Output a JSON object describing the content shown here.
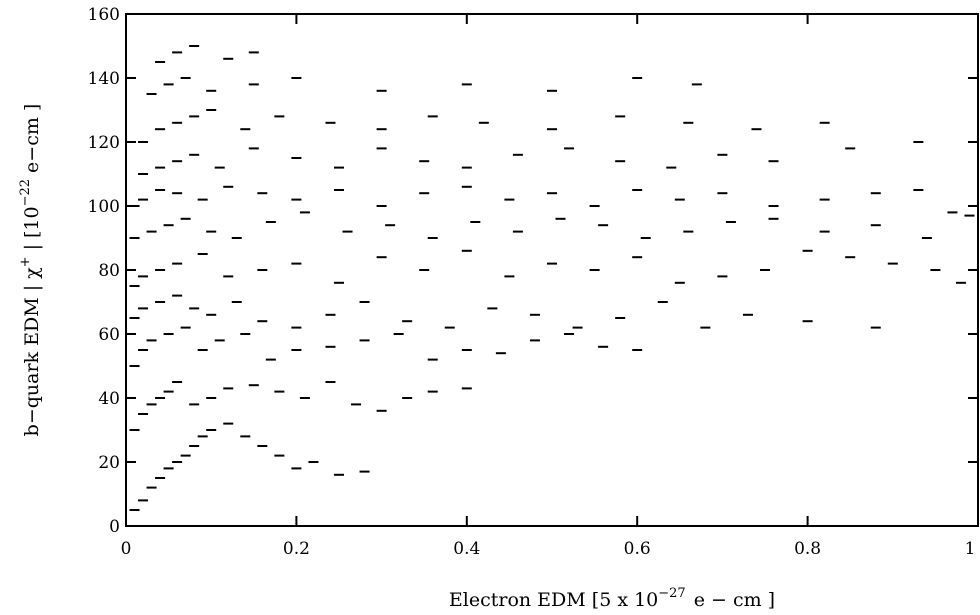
{
  "chart_data": {
    "type": "scatter",
    "title": "",
    "xlabel": "Electron EDM [5 x 10",
    "xlabel_exponent": "−27",
    "xlabel_unit": "e − cm ]",
    "ylabel": "b−quark EDM  |  χ",
    "ylabel_superscript": "+",
    "ylabel_unit": "|  [10",
    "ylabel_exponent": "−22",
    "ylabel_unit2": "e−cm ]",
    "xlim": [
      0,
      1
    ],
    "ylim": [
      0,
      160
    ],
    "grid": false,
    "legend": "none",
    "x_ticks": [
      0,
      0.2,
      0.4,
      0.6,
      0.8,
      1
    ],
    "x_tick_labels": [
      "0",
      "0.2",
      "0.4",
      "0.6",
      "0.8",
      "1"
    ],
    "y_ticks": [
      0,
      20,
      40,
      60,
      80,
      100,
      120,
      140,
      160
    ],
    "y_tick_labels": [
      "0",
      "20",
      "40",
      "60",
      "80",
      "100",
      "120",
      "140",
      "160"
    ],
    "marker_color": "#000000",
    "series": [
      {
        "x": [
          0.01,
          0.02,
          0.03,
          0.04,
          0.05,
          0.06,
          0.07,
          0.08,
          0.09,
          0.1,
          0.12,
          0.14,
          0.16,
          0.18,
          0.2,
          0.22,
          0.25,
          0.28,
          0.01,
          0.02,
          0.03,
          0.04,
          0.05,
          0.06,
          0.08,
          0.1,
          0.12,
          0.15,
          0.18,
          0.21,
          0.24,
          0.27,
          0.3,
          0.33,
          0.36,
          0.4,
          0.01,
          0.02,
          0.03,
          0.05,
          0.07,
          0.09,
          0.11,
          0.14,
          0.17,
          0.2,
          0.24,
          0.28,
          0.32,
          0.36,
          0.4,
          0.44,
          0.48,
          0.52,
          0.56,
          0.6,
          0.01,
          0.02,
          0.04,
          0.06,
          0.08,
          0.1,
          0.13,
          0.16,
          0.2,
          0.24,
          0.28,
          0.33,
          0.38,
          0.43,
          0.48,
          0.53,
          0.58,
          0.63,
          0.68,
          0.73,
          0.8,
          0.88,
          0.01,
          0.02,
          0.04,
          0.06,
          0.09,
          0.12,
          0.16,
          0.2,
          0.25,
          0.3,
          0.35,
          0.4,
          0.45,
          0.5,
          0.55,
          0.6,
          0.65,
          0.7,
          0.75,
          0.8,
          0.85,
          0.9,
          0.95,
          0.98,
          0.01,
          0.03,
          0.05,
          0.07,
          0.1,
          0.13,
          0.17,
          0.21,
          0.26,
          0.31,
          0.36,
          0.41,
          0.46,
          0.51,
          0.56,
          0.61,
          0.66,
          0.71,
          0.76,
          0.82,
          0.88,
          0.94,
          0.99,
          0.01,
          0.02,
          0.04,
          0.06,
          0.09,
          0.12,
          0.16,
          0.2,
          0.25,
          0.3,
          0.35,
          0.4,
          0.45,
          0.5,
          0.55,
          0.6,
          0.65,
          0.7,
          0.76,
          0.82,
          0.88,
          0.93,
          0.97,
          0.02,
          0.04,
          0.06,
          0.08,
          0.11,
          0.15,
          0.2,
          0.25,
          0.3,
          0.35,
          0.4,
          0.46,
          0.52,
          0.58,
          0.64,
          0.7,
          0.76,
          0.85,
          0.93,
          0.02,
          0.04,
          0.06,
          0.08,
          0.1,
          0.14,
          0.18,
          0.24,
          0.3,
          0.36,
          0.42,
          0.5,
          0.58,
          0.66,
          0.74,
          0.82,
          0.03,
          0.05,
          0.07,
          0.1,
          0.15,
          0.2,
          0.3,
          0.4,
          0.5,
          0.6,
          0.67,
          0.04,
          0.06,
          0.08,
          0.12,
          0.15
        ],
        "y": [
          5,
          8,
          12,
          15,
          18,
          20,
          22,
          25,
          28,
          30,
          32,
          28,
          25,
          22,
          18,
          20,
          16,
          17,
          30,
          35,
          38,
          40,
          42,
          45,
          38,
          40,
          43,
          44,
          42,
          40,
          45,
          38,
          36,
          40,
          42,
          43,
          50,
          55,
          58,
          60,
          62,
          55,
          58,
          60,
          52,
          55,
          56,
          58,
          60,
          52,
          55,
          54,
          58,
          60,
          56,
          55,
          65,
          68,
          70,
          72,
          68,
          66,
          70,
          64,
          62,
          66,
          70,
          64,
          62,
          68,
          66,
          62,
          65,
          70,
          62,
          66,
          64,
          62,
          75,
          78,
          80,
          82,
          85,
          78,
          80,
          82,
          76,
          84,
          80,
          86,
          78,
          82,
          80,
          84,
          76,
          78,
          80,
          86,
          84,
          82,
          80,
          76,
          90,
          92,
          94,
          96,
          92,
          90,
          95,
          98,
          92,
          94,
          90,
          95,
          92,
          96,
          94,
          90,
          92,
          95,
          96,
          92,
          94,
          90,
          97,
          100,
          102,
          105,
          104,
          102,
          106,
          104,
          102,
          105,
          100,
          104,
          106,
          102,
          104,
          100,
          105,
          102,
          104,
          100,
          102,
          104,
          105,
          98,
          110,
          112,
          114,
          116,
          112,
          118,
          115,
          112,
          118,
          114,
          112,
          116,
          118,
          114,
          112,
          116,
          114,
          118,
          120,
          120,
          124,
          126,
          128,
          130,
          124,
          128,
          126,
          124,
          128,
          126,
          124,
          128,
          126,
          124,
          126,
          135,
          138,
          140,
          136,
          138,
          140,
          136,
          138,
          136,
          140,
          138,
          145,
          148,
          150,
          146,
          148
        ]
      }
    ]
  }
}
